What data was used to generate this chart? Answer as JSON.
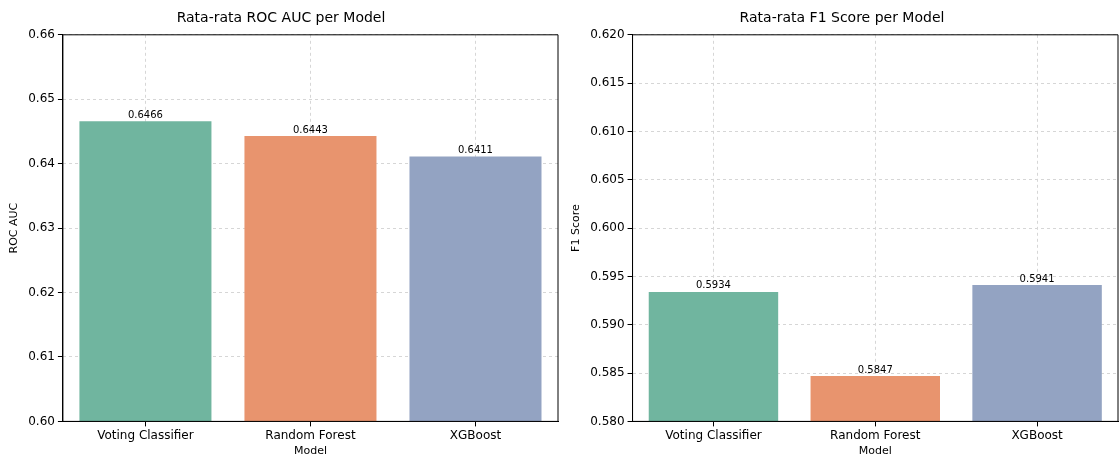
{
  "chart_data": [
    {
      "type": "bar",
      "title": "Rata-rata ROC AUC per Model",
      "xlabel": "Model",
      "ylabel": "ROC AUC",
      "categories": [
        "Voting Classifier",
        "Random Forest",
        "XGBoost"
      ],
      "values": [
        0.6466,
        0.6443,
        0.6411
      ],
      "colors": [
        "#70b59f",
        "#e8946e",
        "#93a3c2"
      ],
      "ylim": [
        0.6,
        0.66
      ],
      "yticks": [
        {
          "value": 0.6,
          "label": "0.60"
        },
        0.61,
        0.62,
        0.63,
        0.64,
        0.65,
        {
          "value": 0.66,
          "label": "0.66"
        }
      ],
      "grid": true,
      "data_labels": true
    },
    {
      "type": "bar",
      "title": "Rata-rata F1 Score per Model",
      "xlabel": "Model",
      "ylabel": "F1 Score",
      "categories": [
        "Voting Classifier",
        "Random Forest",
        "XGBoost"
      ],
      "values": [
        0.5934,
        0.5847,
        0.5941
      ],
      "colors": [
        "#70b59f",
        "#e8946e",
        "#93a3c2"
      ],
      "ylim": [
        0.58,
        0.62
      ],
      "yticks": [
        {
          "value": 0.58,
          "label": "0.580"
        },
        0.585,
        {
          "value": 0.59,
          "label": "0.590"
        },
        0.595,
        {
          "value": 0.6,
          "label": "0.600"
        },
        0.605,
        {
          "value": 0.61,
          "label": "0.610"
        },
        0.615,
        {
          "value": 0.62,
          "label": "0.620"
        }
      ],
      "grid": true,
      "data_labels": true
    }
  ]
}
